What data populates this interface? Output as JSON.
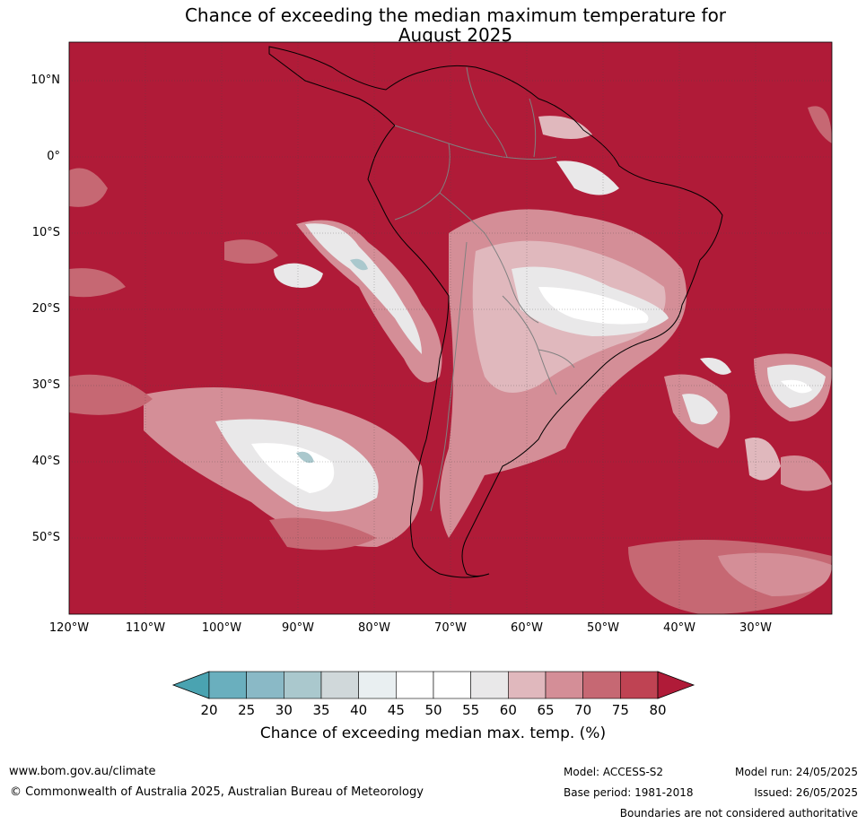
{
  "title_line1": "Chance of exceeding the median maximum temperature for",
  "title_line2": "August 2025",
  "lat_labels": [
    "10°N",
    "0°",
    "10°S",
    "20°S",
    "30°S",
    "40°S",
    "50°S"
  ],
  "lat_values": [
    10,
    0,
    -10,
    -20,
    -30,
    -40,
    -50
  ],
  "lon_labels": [
    "120°W",
    "110°W",
    "100°W",
    "90°W",
    "80°W",
    "70°W",
    "60°W",
    "50°W",
    "40°W",
    "30°W"
  ],
  "lon_values": [
    -120,
    -110,
    -100,
    -90,
    -80,
    -70,
    -60,
    -50,
    -40,
    -30
  ],
  "extent": {
    "lon_min": -120,
    "lon_max": -20,
    "lat_min": -60,
    "lat_max": 15
  },
  "colorbar": {
    "ticks": [
      "20",
      "25",
      "30",
      "35",
      "40",
      "45",
      "50",
      "55",
      "60",
      "65",
      "70",
      "75",
      "80"
    ],
    "colors": [
      "#4aa3b1",
      "#6aafbe",
      "#8ab9c6",
      "#aac8cd",
      "#d0d8da",
      "#e9eff1",
      "#ffffff",
      "#ffffff",
      "#e9e8e9",
      "#e0b8bd",
      "#d48e97",
      "#c66873",
      "#bf4353",
      "#b01b38"
    ],
    "label": "Chance of exceeding median max. temp. (%)"
  },
  "colors": {
    "high": "#b01b38",
    "land_border": "#000000",
    "country_border": "#808080",
    "grid": "#444444"
  },
  "footer": {
    "website": "www.bom.gov.au/climate",
    "copyright": "© Commonwealth of Australia 2025, Australian Bureau of Meteorology",
    "model": "Model: ACCESS-S2",
    "base_period": "Base period: 1981-2018",
    "model_run": "Model run: 24/05/2025",
    "issued": "Issued: 26/05/2025",
    "disclaimer": "Boundaries are not considered authoritative"
  }
}
